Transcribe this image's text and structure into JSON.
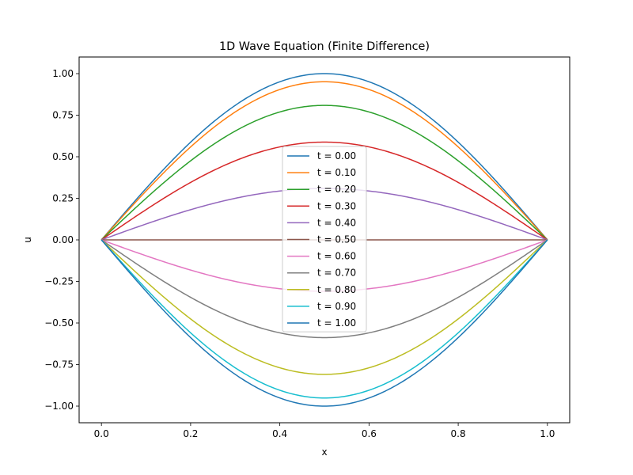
{
  "chart_data": {
    "type": "line",
    "title": "1D Wave Equation (Finite Difference)",
    "xlabel": "x",
    "ylabel": "u",
    "xlim": [
      -0.05,
      1.05
    ],
    "ylim": [
      -1.1,
      1.1
    ],
    "x_ticks": [
      0.0,
      0.2,
      0.4,
      0.6,
      0.8,
      1.0
    ],
    "x_tick_labels": [
      "0.0",
      "0.2",
      "0.4",
      "0.6",
      "0.8",
      "1.0"
    ],
    "y_ticks": [
      -1.0,
      -0.75,
      -0.5,
      -0.25,
      0.0,
      0.25,
      0.5,
      0.75,
      1.0
    ],
    "y_tick_labels": [
      "−1.00",
      "−0.75",
      "−0.50",
      "−0.25",
      "0.00",
      "0.25",
      "0.50",
      "0.75",
      "1.00"
    ],
    "grid": false,
    "legend_position": "center",
    "x": [
      0.0,
      0.05,
      0.1,
      0.15,
      0.2,
      0.25,
      0.3,
      0.35,
      0.4,
      0.45,
      0.5,
      0.55,
      0.6,
      0.65,
      0.7,
      0.75,
      0.8,
      0.85,
      0.9,
      0.95,
      1.0
    ],
    "series": [
      {
        "name": "t = 0.00",
        "color": "#1f77b4",
        "values": [
          0.0,
          0.156,
          0.309,
          0.454,
          0.588,
          0.707,
          0.809,
          0.891,
          0.951,
          0.988,
          1.0,
          0.988,
          0.951,
          0.891,
          0.809,
          0.707,
          0.588,
          0.454,
          0.309,
          0.156,
          0.0
        ]
      },
      {
        "name": "t = 0.10",
        "color": "#ff7f0e",
        "values": [
          0.0,
          0.149,
          0.294,
          0.432,
          0.559,
          0.672,
          0.769,
          0.847,
          0.904,
          0.94,
          0.951,
          0.94,
          0.904,
          0.847,
          0.769,
          0.672,
          0.559,
          0.432,
          0.294,
          0.149,
          0.0
        ]
      },
      {
        "name": "t = 0.20",
        "color": "#2ca02c",
        "values": [
          0.0,
          0.127,
          0.25,
          0.367,
          0.476,
          0.572,
          0.655,
          0.721,
          0.769,
          0.799,
          0.809,
          0.799,
          0.769,
          0.721,
          0.655,
          0.572,
          0.476,
          0.367,
          0.25,
          0.127,
          0.0
        ]
      },
      {
        "name": "t = 0.30",
        "color": "#d62728",
        "values": [
          0.0,
          0.092,
          0.182,
          0.267,
          0.345,
          0.416,
          0.476,
          0.524,
          0.559,
          0.581,
          0.588,
          0.581,
          0.559,
          0.524,
          0.476,
          0.416,
          0.345,
          0.267,
          0.182,
          0.092,
          0.0
        ]
      },
      {
        "name": "t = 0.40",
        "color": "#9467bd",
        "values": [
          0.0,
          0.048,
          0.095,
          0.14,
          0.182,
          0.218,
          0.25,
          0.275,
          0.294,
          0.305,
          0.309,
          0.305,
          0.294,
          0.275,
          0.25,
          0.218,
          0.182,
          0.14,
          0.095,
          0.048,
          0.0
        ]
      },
      {
        "name": "t = 0.50",
        "color": "#8c564b",
        "values": [
          0.0,
          0.0,
          0.0,
          0.0,
          0.0,
          0.0,
          0.0,
          0.0,
          0.0,
          0.0,
          0.0,
          0.0,
          0.0,
          0.0,
          0.0,
          0.0,
          0.0,
          0.0,
          0.0,
          0.0,
          0.0
        ]
      },
      {
        "name": "t = 0.60",
        "color": "#e377c2",
        "values": [
          0.0,
          -0.048,
          -0.095,
          -0.14,
          -0.182,
          -0.218,
          -0.25,
          -0.275,
          -0.294,
          -0.305,
          -0.309,
          -0.305,
          -0.294,
          -0.275,
          -0.25,
          -0.218,
          -0.182,
          -0.14,
          -0.095,
          -0.048,
          0.0
        ]
      },
      {
        "name": "t = 0.70",
        "color": "#7f7f7f",
        "values": [
          0.0,
          -0.092,
          -0.182,
          -0.267,
          -0.345,
          -0.416,
          -0.476,
          -0.524,
          -0.559,
          -0.581,
          -0.588,
          -0.581,
          -0.559,
          -0.524,
          -0.476,
          -0.416,
          -0.345,
          -0.267,
          -0.182,
          -0.092,
          0.0
        ]
      },
      {
        "name": "t = 0.80",
        "color": "#bcbd22",
        "values": [
          0.0,
          -0.127,
          -0.25,
          -0.367,
          -0.476,
          -0.572,
          -0.655,
          -0.721,
          -0.769,
          -0.799,
          -0.809,
          -0.799,
          -0.769,
          -0.721,
          -0.655,
          -0.572,
          -0.476,
          -0.367,
          -0.25,
          -0.127,
          0.0
        ]
      },
      {
        "name": "t = 0.90",
        "color": "#17becf",
        "values": [
          0.0,
          -0.149,
          -0.294,
          -0.432,
          -0.559,
          -0.672,
          -0.769,
          -0.847,
          -0.904,
          -0.94,
          -0.951,
          -0.94,
          -0.904,
          -0.847,
          -0.769,
          -0.672,
          -0.559,
          -0.432,
          -0.294,
          -0.149,
          0.0
        ]
      },
      {
        "name": "t = 1.00",
        "color": "#1f77b4",
        "values": [
          0.0,
          -0.156,
          -0.309,
          -0.454,
          -0.588,
          -0.707,
          -0.809,
          -0.891,
          -0.951,
          -0.988,
          -1.0,
          -0.988,
          -0.951,
          -0.891,
          -0.809,
          -0.707,
          -0.588,
          -0.454,
          -0.309,
          -0.156,
          0.0
        ]
      }
    ]
  }
}
